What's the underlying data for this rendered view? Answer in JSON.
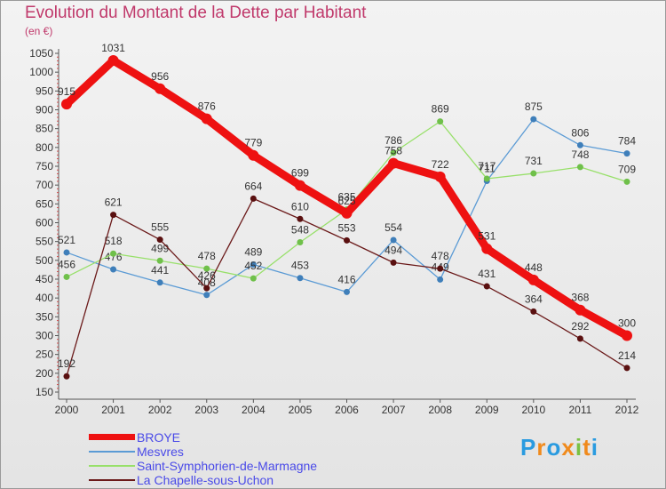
{
  "header": {
    "title": "Evolution du Montant de la Dette par Habitant",
    "subtitle": "(en €)"
  },
  "logo": {
    "text": "Proxiti",
    "colors": [
      "#2a9be0",
      "#f08a1c",
      "#2a9be0",
      "#f08a1c",
      "#7ac142",
      "#f08a1c",
      "#2a9be0"
    ]
  },
  "chart_data": {
    "type": "line",
    "title": "Evolution du Montant de la Dette par Habitant",
    "subtitle": "(en €)",
    "x": [
      "2000",
      "2001",
      "2002",
      "2003",
      "2004",
      "2005",
      "2006",
      "2007",
      "2008",
      "2009",
      "2010",
      "2011",
      "2012"
    ],
    "yticks": [
      "150",
      "200",
      "250",
      "300",
      "350",
      "400",
      "450",
      "500",
      "550",
      "600",
      "650",
      "700",
      "750",
      "800",
      "850",
      "900",
      "950",
      "1000",
      "1050"
    ],
    "ylim": [
      150,
      1050
    ],
    "grid": false,
    "legend_position": "bottom-left",
    "series": [
      {
        "name": "Mesvres",
        "color": "#5b9bd5",
        "values": [
          521,
          476,
          441,
          408,
          489,
          453,
          416,
          554,
          449,
          711,
          875,
          806,
          784
        ],
        "labels": [
          "521",
          "476",
          "441",
          "408",
          "489",
          "453",
          "416",
          "554",
          "449",
          "711",
          "875",
          "806",
          "784"
        ]
      },
      {
        "name": "Saint-Symphorien-de-Marmagne",
        "color": "#98e06a",
        "values": [
          456,
          518,
          499,
          478,
          452,
          548,
          635,
          786,
          869,
          717,
          731,
          748,
          709
        ],
        "labels": [
          "456",
          "518",
          "499",
          "478",
          "452",
          "548",
          "635",
          "786",
          "869",
          "717",
          "731",
          "748",
          "709"
        ]
      },
      {
        "name": "La Chapelle-sous-Uchon",
        "color": "#6b1a1a",
        "values": [
          192,
          621,
          555,
          426,
          664,
          610,
          553,
          494,
          478,
          431,
          364,
          292,
          214
        ],
        "labels": [
          "192",
          "621",
          "555",
          "426",
          "664",
          "610",
          "553",
          "494",
          "478",
          "431",
          "364",
          "292",
          "214"
        ]
      },
      {
        "name": "BROYE",
        "color": "#ee1111",
        "values": [
          915,
          1031,
          956,
          876,
          779,
          699,
          625,
          758,
          722,
          531,
          448,
          368,
          300
        ],
        "labels": [
          "915",
          "1031",
          "956",
          "876",
          "779",
          "699",
          "625",
          "758",
          "722",
          "531",
          "448",
          "368",
          "300"
        ]
      }
    ]
  },
  "legend": [
    {
      "name": "BROYE",
      "color": "#ee1111"
    },
    {
      "name": "Mesvres",
      "color": "#5b9bd5"
    },
    {
      "name": "Saint-Symphorien-de-Marmagne",
      "color": "#98e06a"
    },
    {
      "name": "La Chapelle-sous-Uchon",
      "color": "#6b1a1a"
    }
  ]
}
